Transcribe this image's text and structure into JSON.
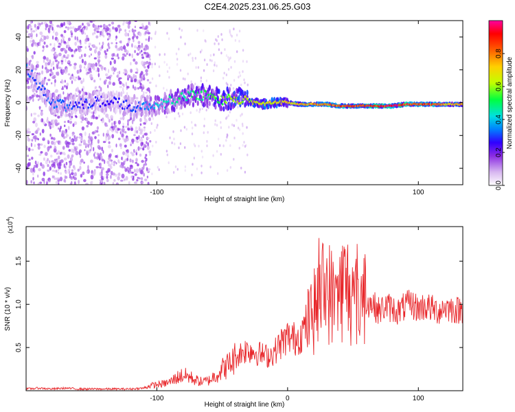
{
  "figure": {
    "title": "C2E4.2025.231.06.25.G03"
  },
  "chart_data": [
    {
      "type": "heatmap",
      "xlabel": "Height of straight line (km)",
      "ylabel": "Frequency (Hz)",
      "xlim": [
        -200,
        134
      ],
      "ylim": [
        -50,
        50
      ],
      "x_ticks": [
        -100,
        0,
        100
      ],
      "x_tick_labels": [
        "-100",
        "",
        "100"
      ],
      "y_ticks": [
        -40,
        -20,
        0,
        20,
        40
      ],
      "y_tick_labels": [
        "-40",
        "-20",
        "0",
        "20",
        "40"
      ],
      "colorbar": {
        "label": "Normalized spectral amplitude",
        "range": [
          0,
          1
        ],
        "ticks": [
          0.0,
          0.2,
          0.4,
          0.6,
          0.8
        ],
        "tick_labels": [
          "0.0",
          "0.2",
          "0.4",
          "0.6",
          "0.8"
        ],
        "colormap": [
          "#ffffff",
          "#d8b8f0",
          "#8a2be2",
          "#3000ff",
          "#0080ff",
          "#00e0e0",
          "#00ff40",
          "#c0ff00",
          "#ffd000",
          "#ff6000",
          "#ff0000",
          "#ff00a0"
        ]
      },
      "ridge": {
        "x": [
          -200,
          -190,
          -180,
          -170,
          -160,
          -150,
          -140,
          -130,
          -120,
          -110,
          -100,
          -90,
          -80,
          -70,
          -60,
          -50,
          -40,
          -30,
          -20,
          -10,
          0,
          10,
          20,
          30,
          40,
          50,
          60,
          70,
          80,
          90,
          100,
          110,
          120,
          134
        ],
        "frequency": [
          22,
          10,
          0,
          -2,
          -1,
          0,
          1,
          0,
          -2,
          -3,
          -2,
          1,
          3,
          5,
          4,
          2,
          3,
          1,
          -1,
          0,
          0,
          -1,
          -1,
          -1,
          -2,
          -2,
          -2,
          -2,
          -2,
          -1,
          -1,
          -1,
          -1,
          -1
        ],
        "amplitude": [
          0.35,
          0.3,
          0.32,
          0.33,
          0.3,
          0.3,
          0.28,
          0.28,
          0.3,
          0.35,
          0.42,
          0.45,
          0.5,
          0.5,
          0.55,
          0.6,
          0.65,
          0.65,
          0.7,
          0.72,
          0.72,
          0.75,
          0.8,
          0.85,
          0.88,
          0.9,
          0.95,
          0.95,
          0.95,
          0.92,
          0.9,
          0.85,
          0.8,
          0.75
        ]
      }
    },
    {
      "type": "line",
      "xlabel": "Height of straight line (km)",
      "ylabel": "SNR (10 * v/v)",
      "y_multiplier": "(x10",
      "y_multiplier_exp": "4",
      "y_multiplier_close": ")",
      "xlim": [
        -200,
        134
      ],
      "ylim": [
        0,
        1.9
      ],
      "x_ticks": [
        -100,
        0,
        100
      ],
      "x_tick_labels": [
        "-100",
        "0",
        "100"
      ],
      "y_ticks": [
        0.5,
        1.0,
        1.5
      ],
      "y_tick_labels": [
        "0.5",
        "1.0",
        "1.5"
      ],
      "series": [
        {
          "color": "#e8262a",
          "x": [
            -200,
            -190,
            -180,
            -170,
            -160,
            -150,
            -140,
            -130,
            -120,
            -110,
            -105,
            -100,
            -95,
            -90,
            -85,
            -80,
            -75,
            -70,
            -65,
            -60,
            -55,
            -50,
            -45,
            -40,
            -35,
            -30,
            -25,
            -20,
            -15,
            -10,
            -5,
            0,
            5,
            10,
            15,
            20,
            25,
            30,
            35,
            40,
            45,
            50,
            55,
            60,
            65,
            70,
            75,
            80,
            85,
            90,
            95,
            100,
            105,
            110,
            115,
            120,
            125,
            130,
            134
          ],
          "y": [
            0.02,
            0.03,
            0.02,
            0.03,
            0.02,
            0.02,
            0.02,
            0.02,
            0.02,
            0.03,
            0.06,
            0.07,
            0.08,
            0.1,
            0.15,
            0.18,
            0.16,
            0.12,
            0.1,
            0.12,
            0.18,
            0.25,
            0.3,
            0.38,
            0.45,
            0.48,
            0.45,
            0.42,
            0.4,
            0.45,
            0.55,
            0.62,
            0.6,
            0.65,
            0.78,
            0.9,
            1.1,
            1.2,
            1.05,
            1.15,
            1.25,
            1.0,
            1.1,
            1.05,
            1.0,
            0.92,
            0.98,
            0.95,
            0.92,
            0.98,
            1.0,
            0.95,
            0.98,
            0.95,
            0.92,
            0.97,
            0.95,
            0.93,
            0.95
          ]
        }
      ]
    }
  ]
}
